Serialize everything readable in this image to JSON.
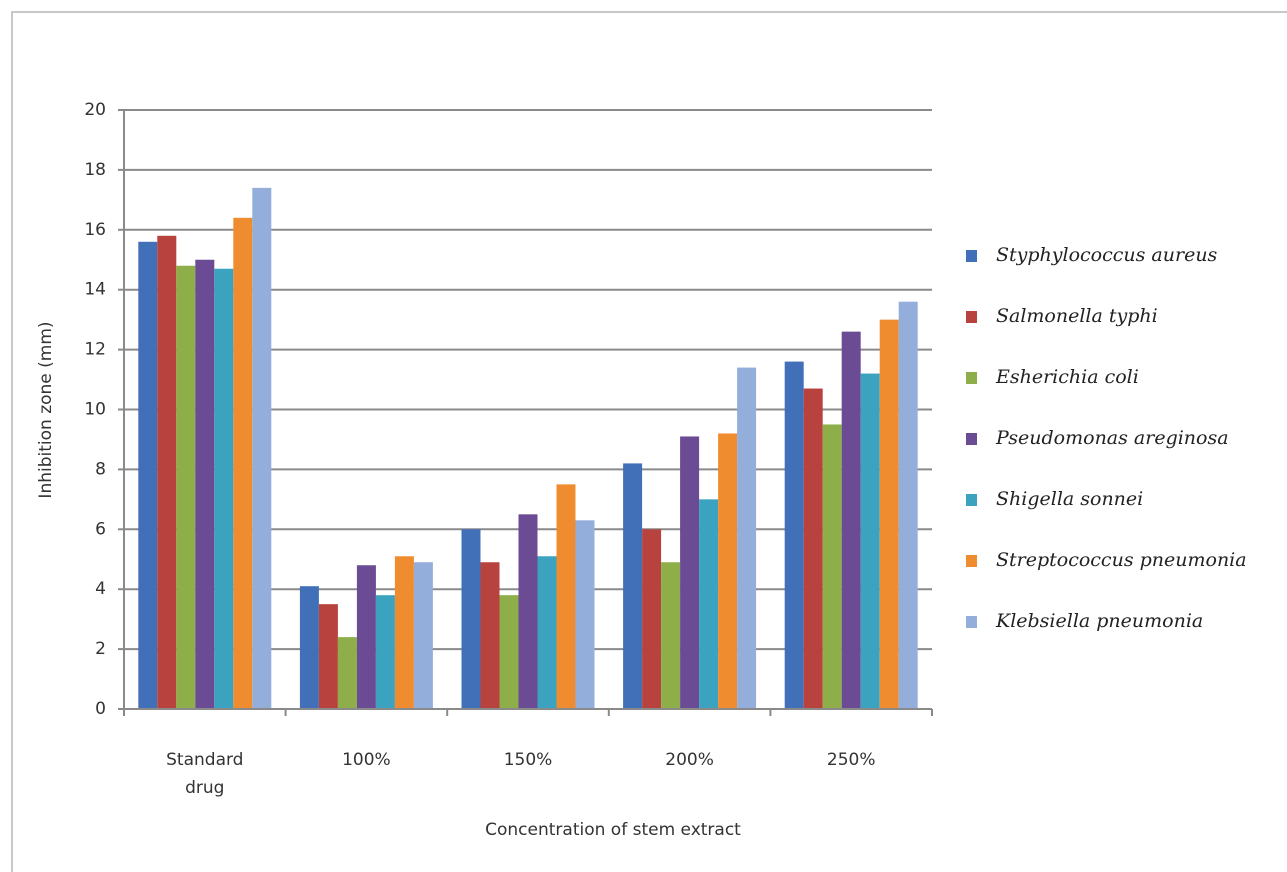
{
  "chart_data": {
    "type": "bar",
    "x_label": "Concentration of stem extract",
    "y_label": "Inhibition zone (mm)",
    "categories": [
      "Standard drug",
      "100%",
      "150%",
      "200%",
      "250%"
    ],
    "series": [
      {
        "name": "Styphylococcus aureus",
        "color": "#4170b8",
        "values": [
          15.6,
          4.1,
          6.0,
          8.2,
          11.6
        ]
      },
      {
        "name": "Salmonella typhi",
        "color": "#b8423d",
        "values": [
          15.8,
          3.5,
          4.9,
          6.0,
          10.7
        ]
      },
      {
        "name": "Esherichia coli",
        "color": "#8dae48",
        "values": [
          14.8,
          2.4,
          3.8,
          4.9,
          9.5
        ]
      },
      {
        "name": "Pseudomonas areginosa",
        "color": "#6b4b94",
        "values": [
          15.0,
          4.8,
          6.5,
          9.1,
          12.6
        ]
      },
      {
        "name": "Shigella sonnei",
        "color": "#3ba2bf",
        "values": [
          14.7,
          3.8,
          5.1,
          7.0,
          11.2
        ]
      },
      {
        "name": "Streptococcus pneumonia",
        "color": "#f08c30",
        "values": [
          16.4,
          5.1,
          7.5,
          9.2,
          13.0
        ]
      },
      {
        "name": "Klebsiella pneumonia",
        "color": "#93aedb",
        "values": [
          17.4,
          4.9,
          6.3,
          11.4,
          13.6
        ]
      }
    ],
    "ylim": [
      0,
      20
    ],
    "yticks": [
      0,
      2,
      4,
      6,
      8,
      10,
      12,
      14,
      16,
      18,
      20
    ],
    "grid": true,
    "legend": "right"
  }
}
